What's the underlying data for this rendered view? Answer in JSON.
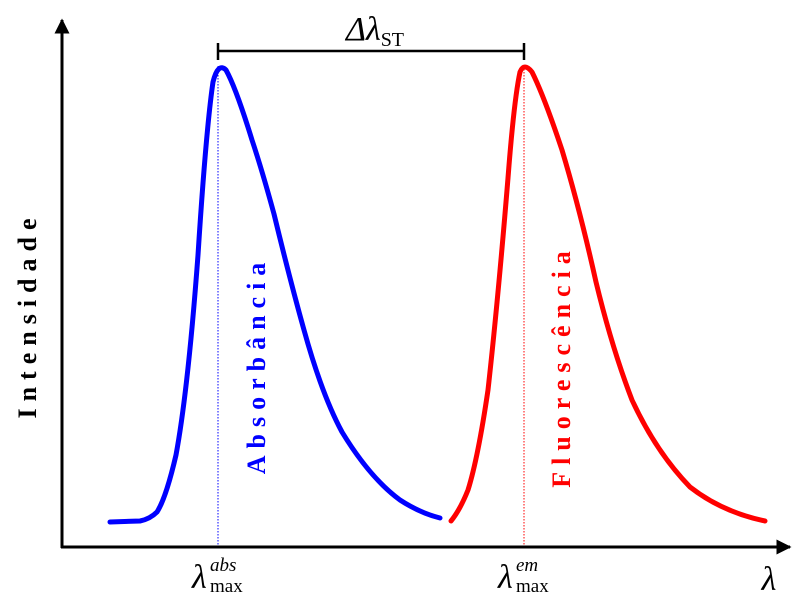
{
  "figure": {
    "y_axis_label": "Intensidade",
    "x_axis_symbol": "λ",
    "stokes_shift": {
      "symbol": "Δλ",
      "subscript": "ST"
    },
    "absorbance": {
      "label": "Absorbância",
      "color": "#0000ff",
      "peak_symbol": "λ",
      "peak_superscript": "abs",
      "peak_subscript": "max"
    },
    "fluorescence": {
      "label": "Fluorescência",
      "color": "#ff0000",
      "peak_symbol": "λ",
      "peak_superscript": "em",
      "peak_subscript": "max"
    },
    "colors": {
      "axis": "#000000",
      "background": "#ffffff"
    }
  }
}
